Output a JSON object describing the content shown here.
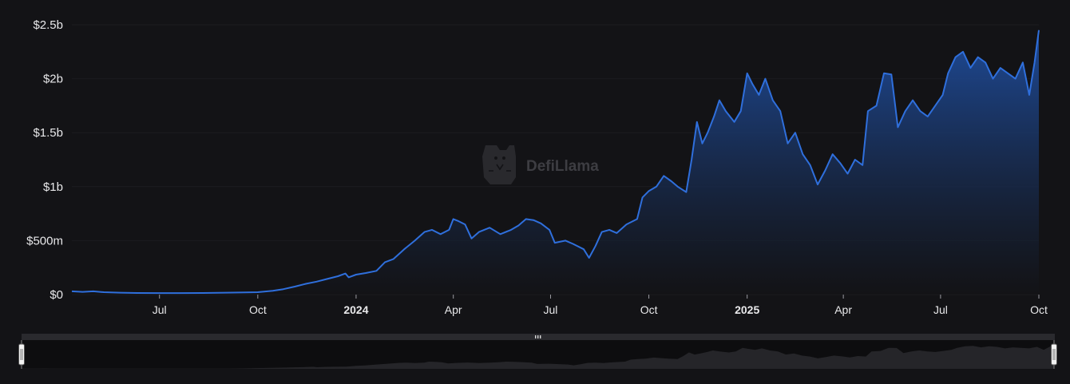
{
  "watermark": {
    "text": "DefiLlama",
    "icon": "llama-logo-icon"
  },
  "colors": {
    "background": "#131316",
    "line": "#2f6fdc",
    "area_top": "#1f4ea0",
    "area_bottom": "#131316",
    "grid": "#1c1c20",
    "tick_text": "#e8e8ea",
    "navigator_bg": "#0d0d0f",
    "navigator_fill": "#2a2a2e",
    "navigator_handle": "#e0e0e0"
  },
  "navigator": {
    "grip_icon": "grip-icon",
    "left_handle_icon": "left-range-handle-icon",
    "right_handle_icon": "right-range-handle-icon"
  },
  "chart_data": {
    "type": "area",
    "title": "",
    "xlabel": "",
    "ylabel": "",
    "x_range": [
      "2023-04-10",
      "2025-10-01"
    ],
    "ylim": [
      0,
      2500
    ],
    "y_unit": "$ millions",
    "grid": "horizontal",
    "y_ticks": [
      {
        "value": 0,
        "label": "$0"
      },
      {
        "value": 500,
        "label": "$500m"
      },
      {
        "value": 1000,
        "label": "$1b"
      },
      {
        "value": 1500,
        "label": "$1.5b"
      },
      {
        "value": 2000,
        "label": "$2b"
      },
      {
        "value": 2500,
        "label": "$2.5b"
      }
    ],
    "x_ticks": [
      {
        "date": "2023-07-01",
        "label": "Jul",
        "bold": false
      },
      {
        "date": "2023-10-01",
        "label": "Oct",
        "bold": false
      },
      {
        "date": "2024-01-01",
        "label": "2024",
        "bold": true
      },
      {
        "date": "2024-04-01",
        "label": "Apr",
        "bold": false
      },
      {
        "date": "2024-07-01",
        "label": "Jul",
        "bold": false
      },
      {
        "date": "2024-10-01",
        "label": "Oct",
        "bold": false
      },
      {
        "date": "2025-01-01",
        "label": "2025",
        "bold": true
      },
      {
        "date": "2025-04-01",
        "label": "Apr",
        "bold": false
      },
      {
        "date": "2025-07-01",
        "label": "Jul",
        "bold": false
      },
      {
        "date": "2025-10-01",
        "label": "Oct",
        "bold": false
      }
    ],
    "series": [
      {
        "values": [
          [
            "2023-04-10",
            30
          ],
          [
            "2023-04-20",
            25
          ],
          [
            "2023-04-30",
            30
          ],
          [
            "2023-05-10",
            22
          ],
          [
            "2023-05-25",
            18
          ],
          [
            "2023-06-10",
            15
          ],
          [
            "2023-07-01",
            14
          ],
          [
            "2023-07-20",
            14
          ],
          [
            "2023-08-10",
            15
          ],
          [
            "2023-09-01",
            18
          ],
          [
            "2023-09-20",
            20
          ],
          [
            "2023-10-01",
            22
          ],
          [
            "2023-10-15",
            35
          ],
          [
            "2023-10-25",
            50
          ],
          [
            "2023-11-05",
            75
          ],
          [
            "2023-11-15",
            100
          ],
          [
            "2023-11-25",
            120
          ],
          [
            "2023-12-05",
            145
          ],
          [
            "2023-12-15",
            170
          ],
          [
            "2023-12-22",
            195
          ],
          [
            "2023-12-25",
            160
          ],
          [
            "2024-01-01",
            185
          ],
          [
            "2024-01-10",
            200
          ],
          [
            "2024-01-20",
            220
          ],
          [
            "2024-01-28",
            300
          ],
          [
            "2024-02-05",
            330
          ],
          [
            "2024-02-15",
            420
          ],
          [
            "2024-02-25",
            500
          ],
          [
            "2024-03-05",
            580
          ],
          [
            "2024-03-12",
            600
          ],
          [
            "2024-03-20",
            560
          ],
          [
            "2024-03-28",
            600
          ],
          [
            "2024-04-01",
            700
          ],
          [
            "2024-04-06",
            680
          ],
          [
            "2024-04-12",
            650
          ],
          [
            "2024-04-18",
            520
          ],
          [
            "2024-04-25",
            580
          ],
          [
            "2024-05-05",
            620
          ],
          [
            "2024-05-15",
            560
          ],
          [
            "2024-05-25",
            600
          ],
          [
            "2024-06-01",
            640
          ],
          [
            "2024-06-08",
            700
          ],
          [
            "2024-06-15",
            690
          ],
          [
            "2024-06-22",
            660
          ],
          [
            "2024-06-30",
            600
          ],
          [
            "2024-07-05",
            480
          ],
          [
            "2024-07-15",
            500
          ],
          [
            "2024-07-22",
            470
          ],
          [
            "2024-08-01",
            420
          ],
          [
            "2024-08-06",
            340
          ],
          [
            "2024-08-12",
            450
          ],
          [
            "2024-08-18",
            580
          ],
          [
            "2024-08-25",
            600
          ],
          [
            "2024-09-01",
            570
          ],
          [
            "2024-09-10",
            650
          ],
          [
            "2024-09-20",
            700
          ],
          [
            "2024-09-25",
            900
          ],
          [
            "2024-10-01",
            960
          ],
          [
            "2024-10-08",
            1000
          ],
          [
            "2024-10-15",
            1100
          ],
          [
            "2024-10-22",
            1050
          ],
          [
            "2024-10-28",
            1000
          ],
          [
            "2024-11-05",
            950
          ],
          [
            "2024-11-10",
            1250
          ],
          [
            "2024-11-15",
            1600
          ],
          [
            "2024-11-20",
            1400
          ],
          [
            "2024-11-25",
            1500
          ],
          [
            "2024-12-01",
            1650
          ],
          [
            "2024-12-06",
            1800
          ],
          [
            "2024-12-12",
            1700
          ],
          [
            "2024-12-20",
            1600
          ],
          [
            "2024-12-26",
            1700
          ],
          [
            "2025-01-01",
            2050
          ],
          [
            "2025-01-06",
            1950
          ],
          [
            "2025-01-12",
            1850
          ],
          [
            "2025-01-18",
            2000
          ],
          [
            "2025-01-25",
            1800
          ],
          [
            "2025-02-01",
            1700
          ],
          [
            "2025-02-08",
            1400
          ],
          [
            "2025-02-15",
            1500
          ],
          [
            "2025-02-22",
            1300
          ],
          [
            "2025-03-01",
            1200
          ],
          [
            "2025-03-08",
            1020
          ],
          [
            "2025-03-15",
            1150
          ],
          [
            "2025-03-22",
            1300
          ],
          [
            "2025-03-29",
            1220
          ],
          [
            "2025-04-05",
            1120
          ],
          [
            "2025-04-12",
            1250
          ],
          [
            "2025-04-19",
            1200
          ],
          [
            "2025-04-24",
            1700
          ],
          [
            "2025-05-02",
            1750
          ],
          [
            "2025-05-09",
            2050
          ],
          [
            "2025-05-16",
            2040
          ],
          [
            "2025-05-22",
            1550
          ],
          [
            "2025-05-29",
            1700
          ],
          [
            "2025-06-05",
            1800
          ],
          [
            "2025-06-12",
            1700
          ],
          [
            "2025-06-19",
            1650
          ],
          [
            "2025-06-26",
            1750
          ],
          [
            "2025-07-03",
            1850
          ],
          [
            "2025-07-08",
            2050
          ],
          [
            "2025-07-15",
            2200
          ],
          [
            "2025-07-22",
            2250
          ],
          [
            "2025-07-29",
            2100
          ],
          [
            "2025-08-05",
            2200
          ],
          [
            "2025-08-12",
            2150
          ],
          [
            "2025-08-19",
            2000
          ],
          [
            "2025-08-26",
            2100
          ],
          [
            "2025-09-02",
            2050
          ],
          [
            "2025-09-09",
            2000
          ],
          [
            "2025-09-16",
            2150
          ],
          [
            "2025-09-22",
            1850
          ],
          [
            "2025-09-27",
            2150
          ],
          [
            "2025-10-01",
            2450
          ]
        ]
      }
    ]
  }
}
